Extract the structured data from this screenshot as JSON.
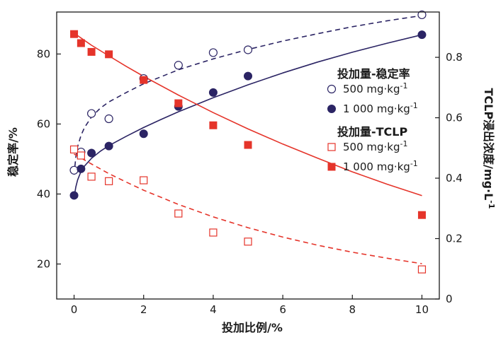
{
  "chart_data": {
    "type": "scatter",
    "xlabel": "投加比例/%",
    "ylabel_left": "稳定率/%",
    "ylabel_right": "TCLP浸出浓度/mg·L",
    "ylabel_right_sup": "-1",
    "xlim": [
      -0.5,
      10.5
    ],
    "ylim_left": [
      10,
      92
    ],
    "ylim_right": [
      0,
      0.95
    ],
    "x_ticks": [
      0,
      2,
      4,
      6,
      8,
      10
    ],
    "y_left_ticks": [
      20,
      40,
      60,
      80
    ],
    "y_right_ticks": [
      0,
      0.2,
      0.4,
      0.6,
      0.8
    ],
    "legend": {
      "group1_title": "投加量-稳定率",
      "group2_title": "投加量-TCLP",
      "entries": [
        {
          "label": "500 mg·kg",
          "sup": "-1",
          "marker": "circle-open",
          "color": "#2b2464"
        },
        {
          "label": "1 000 mg·kg",
          "sup": "-1",
          "marker": "circle-filled",
          "color": "#2b2464"
        },
        {
          "label": "500 mg·kg",
          "sup": "-1",
          "marker": "square-open",
          "color": "#e5342a"
        },
        {
          "label": "1 000 mg·kg",
          "sup": "-1",
          "marker": "square-filled",
          "color": "#e5342a"
        }
      ]
    },
    "series": [
      {
        "group": "stability",
        "dose": "500",
        "axis": "left",
        "marker": "circle-open",
        "color": "#2b2464",
        "dashed": true,
        "x": [
          0,
          0.2,
          0.5,
          1,
          2,
          3,
          4,
          5,
          10
        ],
        "y": [
          46.8,
          52.0,
          63.0,
          61.5,
          73.0,
          76.8,
          80.4,
          81.2,
          91.2
        ],
        "fit_x": [
          0.0,
          0.05,
          0.1,
          0.2,
          0.3,
          0.5,
          0.75,
          1,
          1.5,
          2,
          2.5,
          3,
          4,
          5,
          6,
          7,
          8,
          9,
          10
        ],
        "fit_y": [
          45.5,
          50.5,
          53.5,
          56.8,
          59.0,
          62.0,
          64.5,
          66.3,
          69.0,
          71.5,
          73.5,
          75.5,
          78.6,
          81.3,
          83.7,
          85.8,
          87.8,
          89.5,
          91.0
        ]
      },
      {
        "group": "stability",
        "dose": "1000",
        "axis": "left",
        "marker": "circle-filled",
        "color": "#2b2464",
        "dashed": false,
        "x": [
          0,
          0.2,
          0.5,
          1,
          2,
          3,
          4,
          5,
          10
        ],
        "y": [
          39.6,
          47.2,
          51.7,
          53.7,
          57.2,
          65.0,
          69.0,
          73.7,
          85.5
        ],
        "fit_x": [
          0.0,
          0.05,
          0.1,
          0.2,
          0.3,
          0.5,
          0.75,
          1,
          1.5,
          2,
          2.5,
          3,
          4,
          5,
          6,
          7,
          8,
          9,
          10
        ],
        "fit_y": [
          39.0,
          42.0,
          44.0,
          46.5,
          48.0,
          50.2,
          52.2,
          53.8,
          56.5,
          59.0,
          61.3,
          63.5,
          67.5,
          71.2,
          74.6,
          77.7,
          80.5,
          83.1,
          85.5
        ]
      },
      {
        "group": "tclp",
        "dose": "500",
        "axis": "right",
        "marker": "square-open",
        "color": "#e5342a",
        "dashed": true,
        "x": [
          0,
          0.2,
          0.5,
          1,
          2,
          3,
          4,
          5,
          10
        ],
        "y": [
          0.495,
          0.475,
          0.405,
          0.39,
          0.393,
          0.283,
          0.22,
          0.19,
          0.098
        ],
        "fit_x": [
          0,
          0.5,
          1,
          1.5,
          2,
          3,
          4,
          5,
          6,
          7,
          8,
          9,
          10
        ],
        "fit_y": [
          0.48,
          0.447,
          0.415,
          0.387,
          0.36,
          0.313,
          0.272,
          0.236,
          0.205,
          0.178,
          0.155,
          0.135,
          0.117
        ]
      },
      {
        "group": "tclp",
        "dose": "1000",
        "axis": "right",
        "marker": "square-filled",
        "color": "#e5342a",
        "dashed": false,
        "x": [
          0,
          0.2,
          0.5,
          1,
          2,
          3,
          4,
          5,
          10
        ],
        "y": [
          0.877,
          0.847,
          0.818,
          0.81,
          0.725,
          0.648,
          0.575,
          0.51,
          0.278
        ],
        "fit_x": [
          0,
          0.5,
          1,
          1.5,
          2,
          3,
          4,
          5,
          6,
          7,
          8,
          9,
          10
        ],
        "fit_y": [
          0.88,
          0.84,
          0.805,
          0.77,
          0.737,
          0.675,
          0.617,
          0.563,
          0.513,
          0.466,
          0.421,
          0.38,
          0.342
        ]
      }
    ]
  }
}
